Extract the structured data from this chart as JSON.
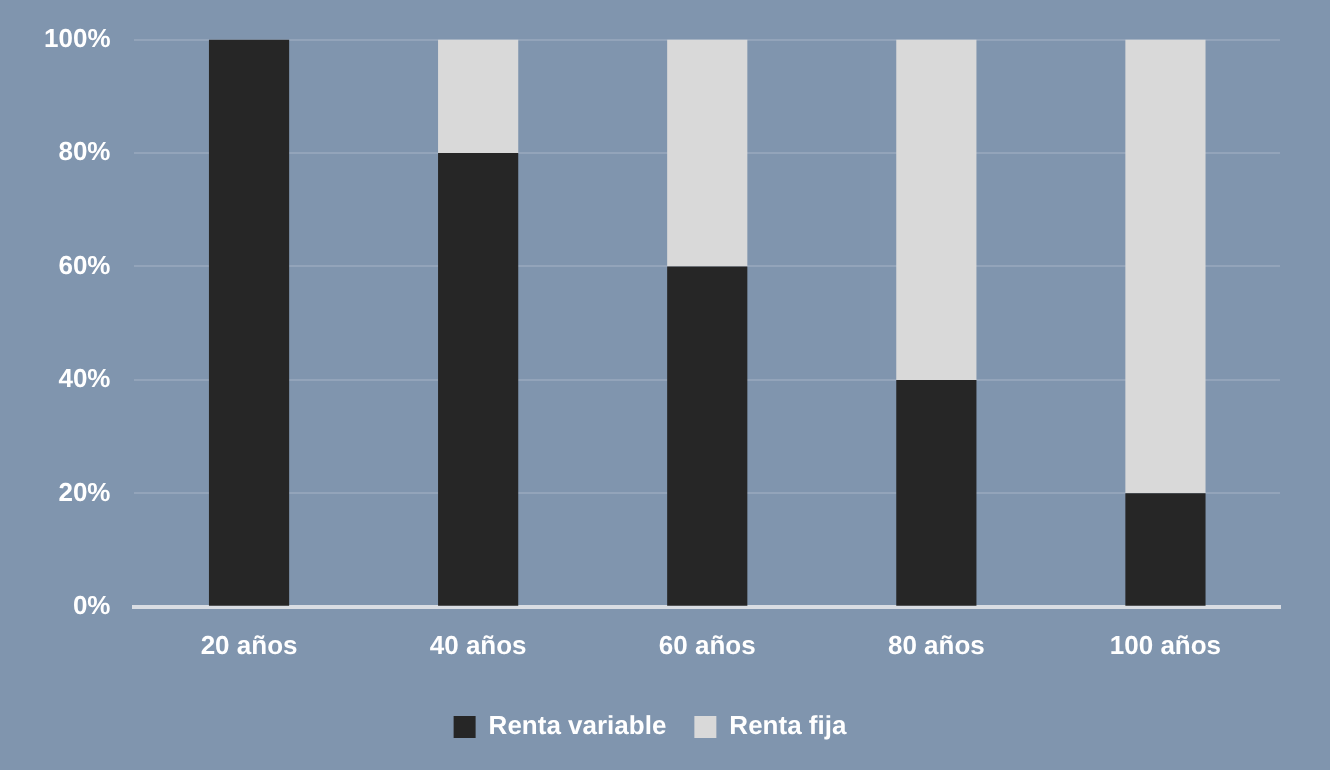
{
  "chart_data": {
    "type": "bar",
    "stacked": true,
    "categories": [
      "20 años",
      "40 años",
      "60 años",
      "80 años",
      "100 años"
    ],
    "series": [
      {
        "name": "Renta variable",
        "color": "#262626",
        "values": [
          100,
          80,
          60,
          40,
          20
        ]
      },
      {
        "name": "Renta fija",
        "color": "#d9d9d9",
        "values": [
          0,
          20,
          40,
          60,
          80
        ]
      }
    ],
    "ylim": [
      0,
      100
    ],
    "yticks": [
      {
        "value": 0,
        "label": "0%"
      },
      {
        "value": 20,
        "label": "20%"
      },
      {
        "value": 40,
        "label": "40%"
      },
      {
        "value": 60,
        "label": "60%"
      },
      {
        "value": 80,
        "label": "80%"
      },
      {
        "value": 100,
        "label": "100%"
      }
    ],
    "grid": "y",
    "legend": "bottom"
  }
}
